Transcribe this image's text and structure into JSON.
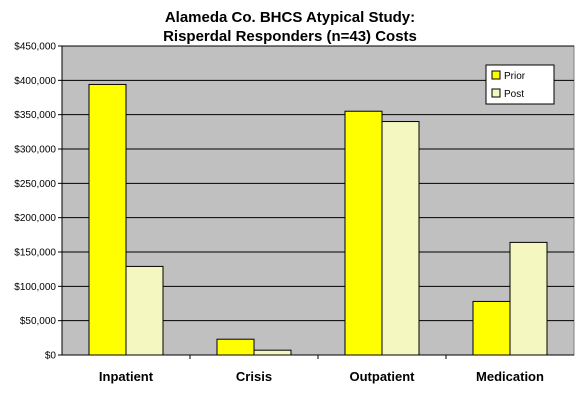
{
  "chart_data": {
    "type": "bar",
    "title_lines": [
      "Alameda Co. BHCS Atypical Study:",
      "Risperdal Responders (n=43) Costs"
    ],
    "categories": [
      "Inpatient",
      "Crisis",
      "Outpatient",
      "Medication"
    ],
    "series": [
      {
        "name": "Prior",
        "values": [
          394000,
          23000,
          355000,
          78000
        ],
        "color": "#ffff00"
      },
      {
        "name": "Post",
        "values": [
          129000,
          7000,
          340000,
          164000
        ],
        "color": "#f5f7c0"
      }
    ],
    "ylim": [
      0,
      450000
    ],
    "yticks": [
      0,
      50000,
      100000,
      150000,
      200000,
      250000,
      300000,
      350000,
      400000,
      450000
    ],
    "ytick_labels": [
      "$0",
      "$50,000",
      "$100,000",
      "$150,000",
      "$200,000",
      "$250,000",
      "$300,000",
      "$350,000",
      "$400,000",
      "$450,000"
    ],
    "grid": true,
    "legend_position": "top-right",
    "plot_background": "#c0c0c0",
    "gridline_color": "#000000"
  }
}
